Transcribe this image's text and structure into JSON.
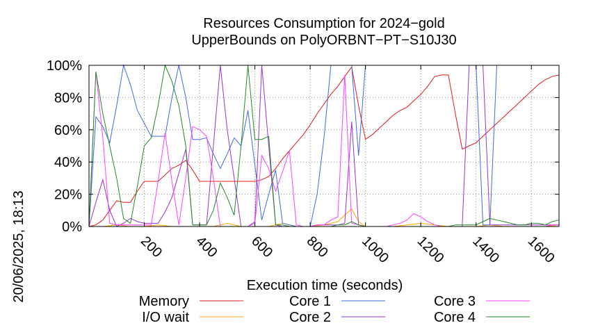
{
  "side_label": "20/06/2025, 18:13",
  "chart_data": {
    "type": "line",
    "title": [
      "Resources Consumption for 2024−gold",
      "UpperBounds on PolyORBNT−PT−S10J30"
    ],
    "xlabel": "Execution time (seconds)",
    "ylabel": "",
    "xlim": [
      0,
      1700
    ],
    "ylim": [
      0,
      100
    ],
    "x_ticks": [
      200,
      400,
      600,
      800,
      1000,
      1200,
      1400,
      1600
    ],
    "x_tick_labels": [
      "200",
      "400",
      "600",
      "800",
      "1000",
      "1200",
      "1400",
      "1600"
    ],
    "y_ticks": [
      0,
      20,
      40,
      60,
      80,
      100
    ],
    "y_tick_labels": [
      "0%",
      "20%",
      "40%",
      "60%",
      "80%",
      "100%"
    ],
    "grid": true,
    "legend_position": "bottom",
    "series": [
      {
        "name": "Memory",
        "color": "#e41a1c",
        "x": [
          0,
          25,
          50,
          75,
          100,
          125,
          150,
          175,
          200,
          225,
          250,
          275,
          300,
          325,
          350,
          375,
          400,
          425,
          450,
          475,
          500,
          525,
          550,
          575,
          600,
          625,
          650,
          675,
          700,
          725,
          750,
          775,
          800,
          825,
          850,
          875,
          900,
          925,
          950,
          975,
          1000,
          1025,
          1050,
          1075,
          1100,
          1125,
          1150,
          1175,
          1200,
          1225,
          1250,
          1275,
          1300,
          1325,
          1350,
          1375,
          1400,
          1425,
          1450,
          1475,
          1500,
          1525,
          1550,
          1575,
          1600,
          1625,
          1650,
          1675,
          1700
        ],
        "y": [
          0,
          1,
          4,
          10,
          16,
          15,
          15,
          22,
          28,
          28,
          28,
          32,
          36,
          38,
          41,
          35,
          28,
          28,
          28,
          28,
          28,
          28,
          28,
          28,
          28,
          29,
          31,
          36,
          42,
          47,
          52,
          57,
          63,
          70,
          76,
          82,
          87,
          93,
          99,
          75,
          54,
          57,
          61,
          65,
          69,
          72,
          74,
          78,
          82,
          87,
          93,
          94,
          94,
          70,
          48,
          50,
          52,
          56,
          60,
          64,
          68,
          72,
          76,
          80,
          84,
          88,
          91,
          93,
          94
        ]
      },
      {
        "name": "I/O wait",
        "color": "#ffa500",
        "x": [
          0,
          50,
          100,
          150,
          200,
          250,
          300,
          350,
          400,
          450,
          500,
          550,
          600,
          650,
          700,
          750,
          800,
          850,
          900,
          950,
          975,
          1000,
          1050,
          1100,
          1150,
          1200,
          1250,
          1300,
          1350,
          1400,
          1450,
          1500,
          1550,
          1600,
          1650,
          1700
        ],
        "y": [
          0,
          0,
          1,
          0,
          0,
          1,
          0,
          0,
          0,
          0,
          2,
          0,
          0,
          0,
          2,
          0,
          0,
          1,
          3,
          11,
          3,
          0,
          0,
          0,
          1,
          2,
          1,
          0,
          0,
          0,
          1,
          0,
          0,
          0,
          0,
          1
        ]
      },
      {
        "name": "Core 1",
        "color": "#4169e1",
        "x": [
          0,
          25,
          50,
          75,
          100,
          125,
          150,
          175,
          200,
          225,
          250,
          275,
          300,
          325,
          350,
          375,
          400,
          425,
          450,
          475,
          500,
          525,
          550,
          575,
          600,
          625,
          650,
          675,
          700,
          725,
          750,
          775,
          800,
          825,
          850,
          875,
          900,
          925,
          950,
          975,
          1000,
          1025,
          1050,
          1075,
          1100,
          1125,
          1150,
          1175,
          1200,
          1225,
          1250,
          1275,
          1300,
          1325,
          1350,
          1375,
          1400,
          1425,
          1450,
          1475,
          1500,
          1525,
          1550,
          1575,
          1600,
          1625,
          1650,
          1675,
          1700
        ],
        "y": [
          0,
          68,
          62,
          52,
          75,
          100,
          88,
          72,
          64,
          56,
          56,
          56,
          80,
          100,
          80,
          54,
          54,
          55,
          45,
          36,
          45,
          55,
          50,
          72,
          38,
          4,
          20,
          35,
          2,
          1,
          0,
          0,
          0,
          20,
          55,
          100,
          100,
          100,
          100,
          44,
          100,
          100,
          100,
          100,
          100,
          100,
          100,
          100,
          100,
          100,
          100,
          100,
          100,
          100,
          100,
          100,
          100,
          1,
          1,
          100,
          100,
          100,
          100,
          100,
          100,
          100,
          100,
          100,
          100
        ]
      },
      {
        "name": "Core 2",
        "color": "#9932cc",
        "x": [
          0,
          25,
          50,
          75,
          100,
          125,
          150,
          175,
          200,
          225,
          250,
          275,
          300,
          325,
          350,
          375,
          400,
          425,
          450,
          475,
          500,
          525,
          550,
          575,
          600,
          625,
          650,
          675,
          700,
          725,
          750,
          775,
          800,
          825,
          850,
          875,
          900,
          925,
          950,
          975,
          1000,
          1025,
          1050,
          1075,
          1100,
          1125,
          1150,
          1175,
          1200,
          1225,
          1250,
          1275,
          1300,
          1325,
          1350,
          1375,
          1400,
          1425,
          1450,
          1475,
          1500,
          1525,
          1550,
          1575,
          1600,
          1625,
          1650,
          1675,
          1700
        ],
        "y": [
          0,
          15,
          29,
          10,
          0,
          2,
          5,
          3,
          2,
          2,
          2,
          9,
          18,
          33,
          48,
          1,
          1,
          1,
          50,
          100,
          60,
          30,
          0,
          0,
          3,
          100,
          50,
          1,
          0,
          0,
          0,
          0,
          0,
          1,
          1,
          1,
          1,
          2,
          65,
          1,
          0,
          0,
          0,
          0,
          0,
          0,
          0,
          0,
          0,
          0,
          0,
          0,
          0,
          0,
          0,
          100,
          100,
          100,
          1,
          1,
          1,
          1,
          1,
          1,
          1,
          1,
          1,
          1,
          1
        ]
      },
      {
        "name": "Core 3",
        "color": "#ff40ff",
        "x": [
          0,
          25,
          50,
          75,
          100,
          125,
          150,
          175,
          200,
          225,
          250,
          275,
          300,
          325,
          350,
          375,
          400,
          425,
          450,
          475,
          500,
          525,
          550,
          575,
          600,
          625,
          650,
          675,
          700,
          725,
          750,
          775,
          800,
          825,
          850,
          875,
          900,
          925,
          950,
          975,
          1000,
          1025,
          1050,
          1075,
          1100,
          1125,
          1150,
          1175,
          1200,
          1225,
          1250,
          1275,
          1300,
          1325,
          1350,
          1375,
          1400,
          1425,
          1450,
          1475,
          1500,
          1525,
          1550,
          1575,
          1600,
          1625,
          1650,
          1675,
          1700
        ],
        "y": [
          0,
          96,
          55,
          2,
          1,
          1,
          1,
          1,
          1,
          1,
          28,
          58,
          28,
          1,
          30,
          62,
          60,
          56,
          30,
          0,
          0,
          0,
          0,
          0,
          2,
          44,
          36,
          22,
          34,
          47,
          1,
          0,
          0,
          1,
          1,
          4,
          6,
          94,
          2,
          1,
          0,
          0,
          0,
          0,
          1,
          2,
          4,
          8,
          6,
          3,
          1,
          0,
          0,
          0,
          0,
          0,
          0,
          0,
          0,
          0,
          0,
          0,
          0,
          0,
          0,
          0,
          0,
          1,
          1
        ]
      },
      {
        "name": "Core 4",
        "color": "#228b22",
        "x": [
          0,
          25,
          50,
          75,
          100,
          125,
          150,
          175,
          200,
          225,
          250,
          275,
          300,
          325,
          350,
          375,
          400,
          425,
          450,
          475,
          500,
          525,
          550,
          575,
          600,
          625,
          650,
          675,
          700,
          725,
          750,
          775,
          800,
          825,
          850,
          875,
          900,
          925,
          950,
          975,
          1000,
          1025,
          1050,
          1075,
          1100,
          1125,
          1150,
          1175,
          1200,
          1225,
          1250,
          1275,
          1300,
          1325,
          1350,
          1375,
          1400,
          1425,
          1450,
          1475,
          1500,
          1525,
          1550,
          1575,
          1600,
          1625,
          1650,
          1675,
          1700
        ],
        "y": [
          0,
          96,
          70,
          50,
          30,
          5,
          2,
          25,
          50,
          55,
          75,
          100,
          90,
          75,
          50,
          1,
          1,
          1,
          10,
          27,
          18,
          7,
          50,
          100,
          54,
          54,
          56,
          1,
          1,
          0,
          0,
          0,
          0,
          0,
          0,
          0,
          1,
          1,
          3,
          1,
          0,
          0,
          0,
          0,
          0,
          0,
          0,
          0,
          0,
          0,
          0,
          0,
          0,
          1,
          1,
          1,
          1,
          3,
          5,
          4,
          3,
          2,
          1,
          1,
          2,
          2,
          1,
          3,
          4
        ]
      }
    ]
  }
}
